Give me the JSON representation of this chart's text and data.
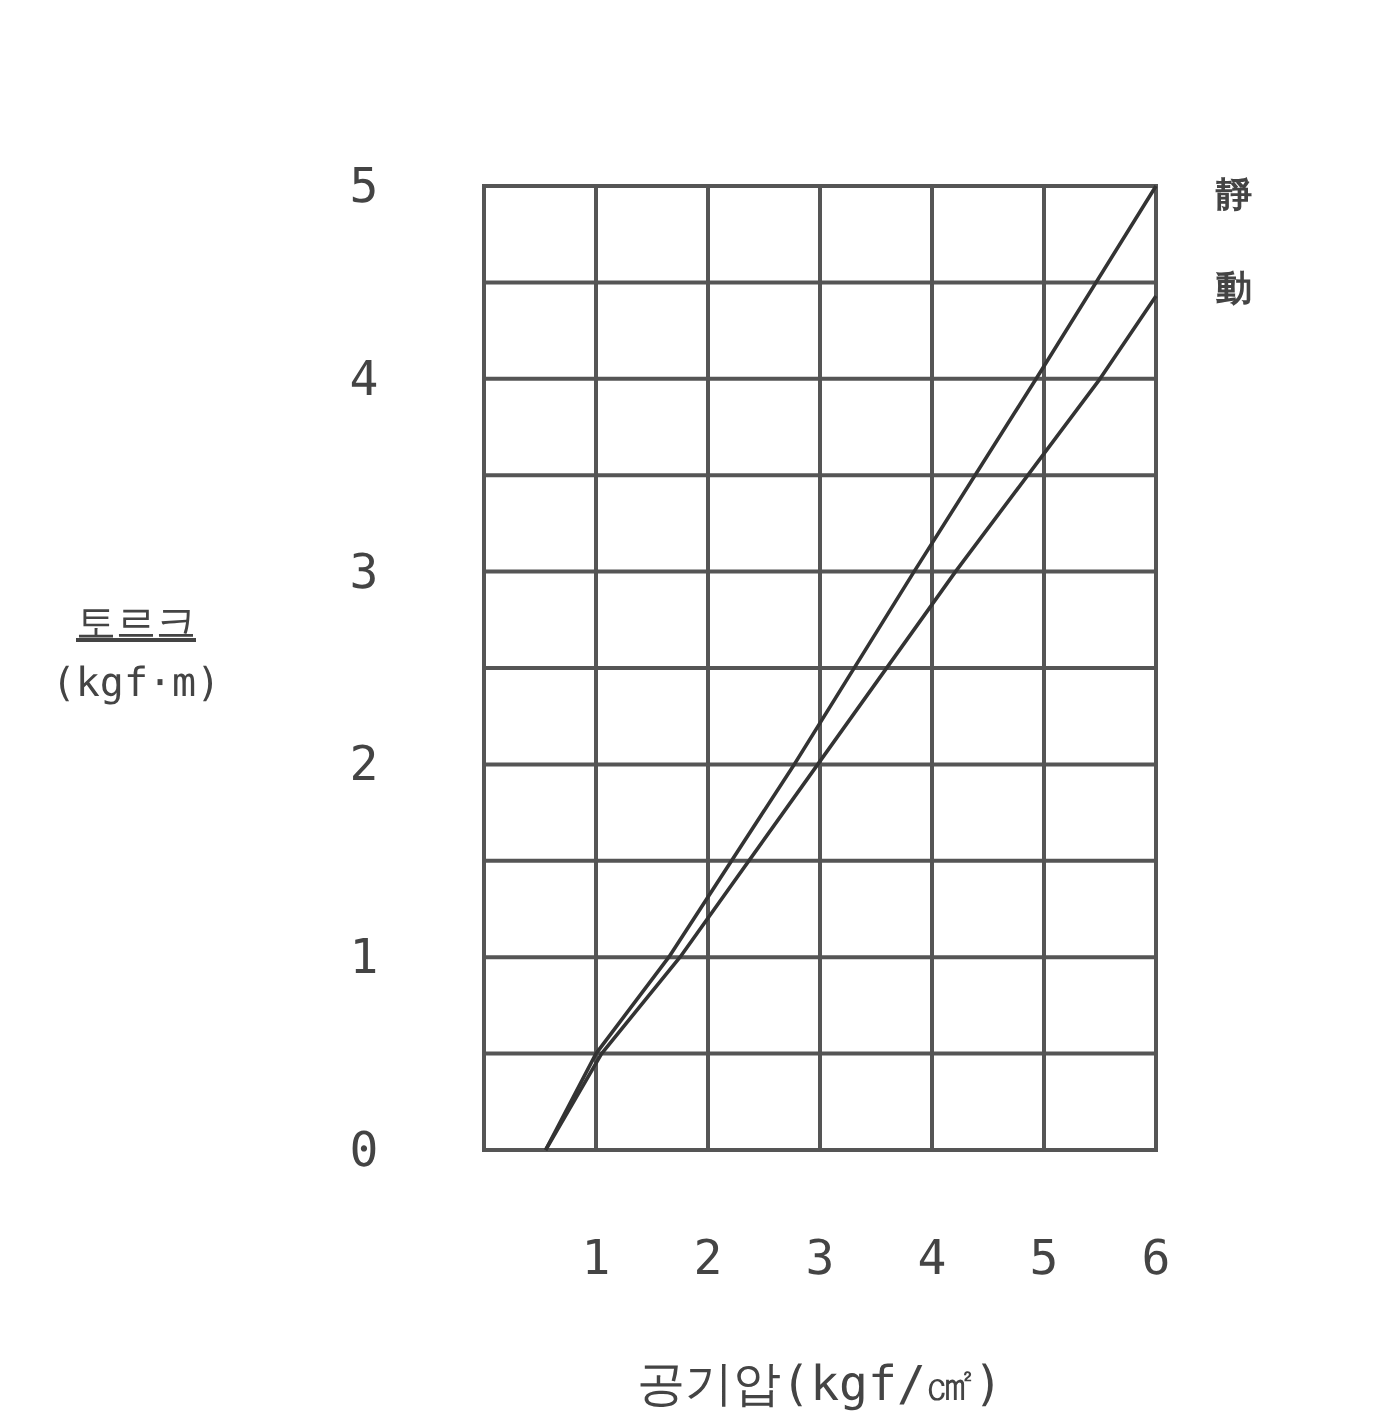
{
  "chart_data": {
    "type": "line",
    "xlabel": "공기압(kgf/㎠)",
    "ylabel": "토르크\n(kgf·m)",
    "xlim": [
      0,
      6
    ],
    "ylim": [
      0,
      5
    ],
    "xticks": [
      {
        "value": 0,
        "label": null
      },
      1,
      2,
      3,
      4,
      5,
      6
    ],
    "yticks": [
      0,
      {
        "value": 0.5,
        "label": null
      },
      1,
      {
        "value": 1.5,
        "label": null
      },
      2,
      {
        "value": 2.5,
        "label": null
      },
      3,
      {
        "value": 3.5,
        "label": null
      },
      4,
      {
        "value": 4.5,
        "label": null
      },
      5
    ],
    "grid": true,
    "legend": false,
    "marker": "none",
    "line_style": "solid",
    "series": [
      {
        "name": "靜",
        "color": "#333333",
        "x": [
          0.55,
          1.0,
          1.65,
          2.77,
          3.84,
          4.93,
          6.0
        ],
        "values": [
          0,
          0.5,
          1,
          2,
          3,
          4,
          5
        ]
      },
      {
        "name": "動",
        "color": "#333333",
        "x": [
          0.55,
          1.05,
          1.75,
          2.98,
          4.21,
          5.5,
          6.0
        ],
        "values": [
          0,
          0.5,
          1,
          2,
          3,
          4,
          4.43
        ]
      }
    ]
  }
}
